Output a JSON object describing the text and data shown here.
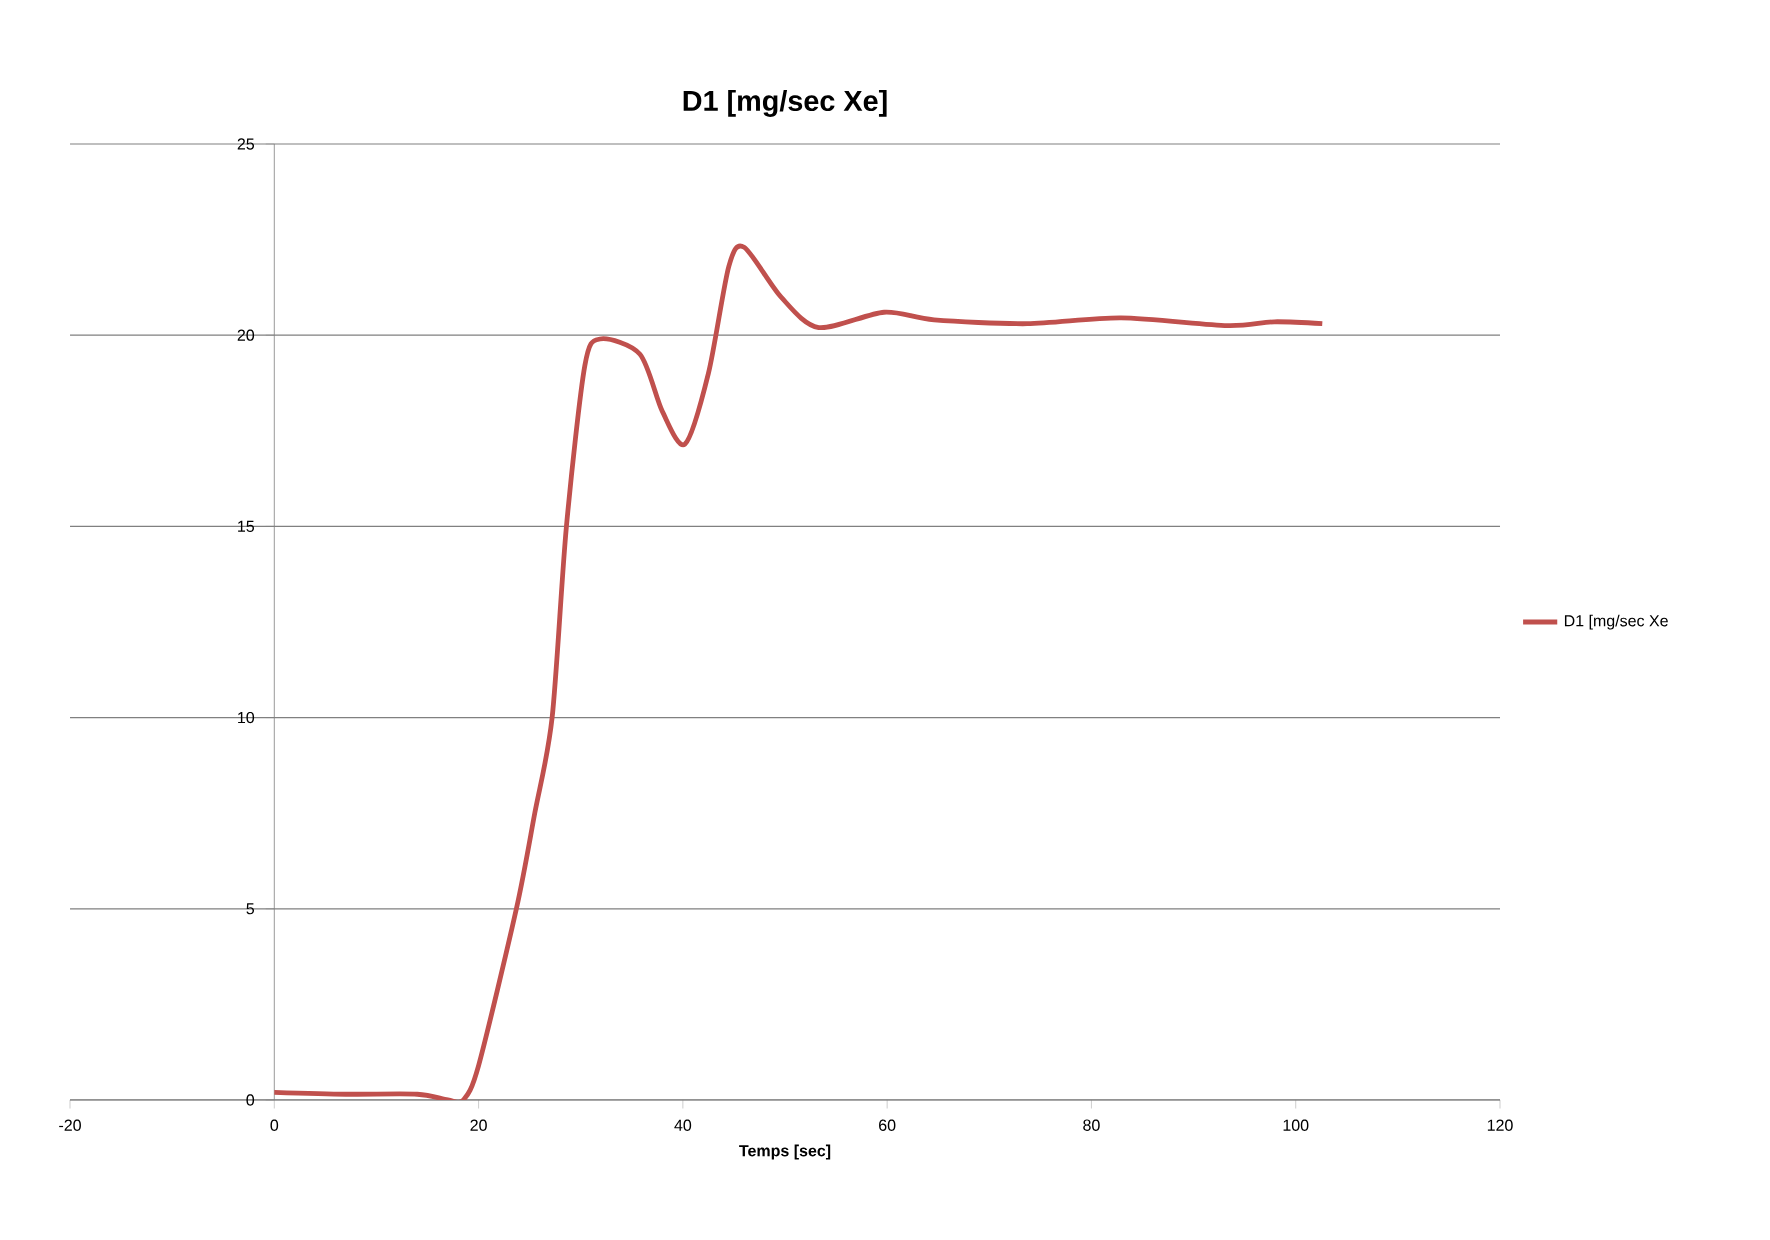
{
  "chart_data": {
    "type": "line",
    "title": "D1 [mg/sec Xe]",
    "xlabel": "Temps [sec]",
    "xlim": [
      -20,
      120
    ],
    "xticks": [
      -20,
      0,
      20,
      40,
      60,
      80,
      100,
      120
    ],
    "ylim": [
      0,
      25
    ],
    "yticks": [
      0,
      5,
      10,
      15,
      20,
      25
    ],
    "grid": "y",
    "legend": "right",
    "marker": "none",
    "series": [
      {
        "name": "D1 [mg/sec Xe",
        "color": "#c0504d",
        "x": [
          0,
          7,
          14,
          17,
          18.5,
          20,
          23.7,
          25.5,
          27.2,
          28.6,
          30.4,
          31.9,
          35.8,
          38,
          40.2,
          42.5,
          44.5,
          46,
          49.6,
          53.3,
          59.7,
          64.6,
          73.7,
          82.9,
          93.3,
          97.9,
          102.6
        ],
        "values": [
          0.2,
          0.15,
          0.15,
          0,
          0,
          0.9,
          5,
          7.5,
          10,
          15,
          19.2,
          19.9,
          19.5,
          18,
          17.15,
          19,
          21.8,
          22.3,
          21,
          20.2,
          20.6,
          20.4,
          20.3,
          20.45,
          20.25,
          20.35,
          20.3
        ]
      }
    ]
  }
}
